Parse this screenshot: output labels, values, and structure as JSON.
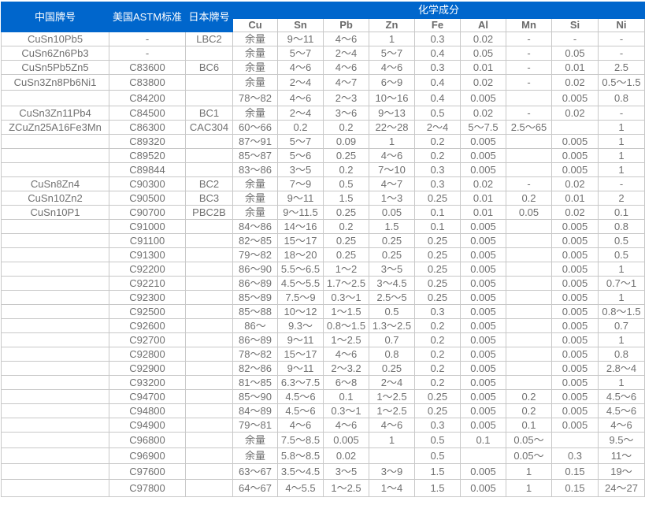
{
  "header": {
    "cn_grade": "中国牌号",
    "astm": "美国ASTM标准",
    "jp_grade": "日本牌号",
    "composition": "化学成分",
    "elements": [
      "Cu",
      "Sn",
      "Pb",
      "Zn",
      "Fe",
      "Al",
      "Mn",
      "Si",
      "Ni"
    ]
  },
  "rows": [
    [
      "CuSn10Pb5",
      "-",
      "LBC2",
      "余量",
      "9～11",
      "4～6",
      "1",
      "0.3",
      "0.02",
      "-",
      "-",
      "-"
    ],
    [
      "CuSn6Zn6Pb3",
      "-",
      "",
      "余量",
      "5～7",
      "2～4",
      "5～7",
      "0.4",
      "0.05",
      "-",
      "0.05",
      "-"
    ],
    [
      "CuSn5Pb5Zn5",
      "C83600",
      "BC6",
      "余量",
      "4～6",
      "4～6",
      "4～6",
      "0.3",
      "0.01",
      "-",
      "0.01",
      "2.5"
    ],
    [
      "CuSn3Zn8Pb6Ni1",
      "C83800",
      "",
      "余量",
      "2～4",
      "4～7",
      "6～9",
      "0.4",
      "0.02",
      "-",
      "0.02",
      "0.5～1.5"
    ],
    [
      "",
      "C84200",
      "",
      "78～82",
      "4～6",
      "2～3",
      "10～16",
      "0.4",
      "0.005",
      "",
      "0.005",
      "0.8"
    ],
    [
      "CuSn3Zn11Pb4",
      "C84500",
      "BC1",
      "余量",
      "2～4",
      "3～6",
      "9～13",
      "0.5",
      "0.02",
      "-",
      "0.02",
      "-"
    ],
    [
      "ZCuZn25A16Fe3Mn",
      "C86300",
      "CAC304",
      "60～66",
      "0.2",
      "0.2",
      "22～28",
      "2～4",
      "5～7.5",
      "2.5～65",
      "",
      "1"
    ],
    [
      "",
      "C89320",
      "",
      "87～91",
      "5～7",
      "0.09",
      "1",
      "0.2",
      "0.005",
      "",
      "0.005",
      "1"
    ],
    [
      "",
      "C89520",
      "",
      "85～87",
      "5～6",
      "0.25",
      "4～6",
      "0.2",
      "0.005",
      "",
      "0.005",
      "1"
    ],
    [
      "",
      "C89844",
      "",
      "83～86",
      "3～5",
      "0.2",
      "7～10",
      "0.3",
      "0.005",
      "",
      "0.005",
      "1"
    ],
    [
      "CuSn8Zn4",
      "C90300",
      "BC2",
      "余量",
      "7～9",
      "0.5",
      "4～7",
      "0.3",
      "0.02",
      "-",
      "0.02",
      "-"
    ],
    [
      "CuSn10Zn2",
      "C90500",
      "BC3",
      "余量",
      "9～11",
      "1.5",
      "1～3",
      "0.25",
      "0.01",
      "0.2",
      "0.01",
      "2"
    ],
    [
      "CuSn10P1",
      "C90700",
      "PBC2B",
      "余量",
      "9～11.5",
      "0.25",
      "0.05",
      "0.1",
      "0.01",
      "0.05",
      "0.02",
      "0.1"
    ],
    [
      "",
      "C91000",
      "",
      "84～86",
      "14～16",
      "0.2",
      "1.5",
      "0.1",
      "0.005",
      "",
      "0.005",
      "0.8"
    ],
    [
      "",
      "C91100",
      "",
      "82～85",
      "15～17",
      "0.25",
      "0.25",
      "0.25",
      "0.005",
      "",
      "0.005",
      "0.5"
    ],
    [
      "",
      "C91300",
      "",
      "79～82",
      "18～20",
      "0.25",
      "0.25",
      "0.25",
      "0.005",
      "",
      "0.005",
      "0.5"
    ],
    [
      "",
      "C92200",
      "",
      "86～90",
      "5.5～6.5",
      "1～2",
      "3～5",
      "0.25",
      "0.005",
      "",
      "0.005",
      "1"
    ],
    [
      "",
      "C92210",
      "",
      "86～89",
      "4.5～5.5",
      "1.7～2.5",
      "3～4.5",
      "0.25",
      "0.005",
      "",
      "0.005",
      "0.7～1"
    ],
    [
      "",
      "C92300",
      "",
      "85～89",
      "7.5～9",
      "0.3～1",
      "2.5～5",
      "0.25",
      "0.005",
      "",
      "0.005",
      "1"
    ],
    [
      "",
      "C92500",
      "",
      "85～88",
      "10～12",
      "1～1.5",
      "0.5",
      "0.3",
      "0.005",
      "",
      "0.005",
      "0.8～1.5"
    ],
    [
      "",
      "C92600",
      "",
      "86～",
      "9.3～",
      "0.8～1.5",
      "1.3～2.5",
      "0.2",
      "0.005",
      "",
      "0.005",
      "0.7"
    ],
    [
      "",
      "C92700",
      "",
      "86～89",
      "9～11",
      "1～2.5",
      "0.7",
      "0.2",
      "0.005",
      "",
      "0.005",
      "1"
    ],
    [
      "",
      "C92800",
      "",
      "78～82",
      "15～17",
      "4～6",
      "0.8",
      "0.2",
      "0.005",
      "",
      "0.005",
      "0.8"
    ],
    [
      "",
      "C92900",
      "",
      "82～86",
      "9～11",
      "2～3.2",
      "0.25",
      "0.2",
      "0.005",
      "",
      "0.005",
      "2.8～4"
    ],
    [
      "",
      "C93200",
      "",
      "81～85",
      "6.3～7.5",
      "6～8",
      "2～4",
      "0.2",
      "0.005",
      "",
      "0.005",
      "1"
    ],
    [
      "",
      "C94700",
      "",
      "85～90",
      "4.5～6",
      "0.1",
      "1～2.5",
      "0.25",
      "0.005",
      "0.2",
      "0.005",
      "4.5～6"
    ],
    [
      "",
      "C94800",
      "",
      "84～89",
      "4.5～6",
      "0.3～1",
      "1～2.5",
      "0.25",
      "0.005",
      "0.2",
      "0.005",
      "4.5～6"
    ],
    [
      "",
      "C94900",
      "",
      "79～81",
      "4～6",
      "4～6",
      "4～6",
      "0.3",
      "0.005",
      "0.1",
      "0.005",
      "4～6"
    ],
    [
      "",
      "C96800",
      "",
      "余量",
      "7.5～8.5",
      "0.005",
      "1",
      "0.5",
      "0.1",
      "0.05～",
      "",
      "9.5～"
    ],
    [
      "",
      "C96900",
      "",
      "余量",
      "5.8～8.5",
      "0.02",
      "",
      "0.5",
      "",
      "0.05～",
      "0.3",
      "11～"
    ],
    [
      "",
      "C97600",
      "",
      "63～67",
      "3.5～4.5",
      "3～5",
      "3～9",
      "1.5",
      "0.005",
      "1",
      "0.15",
      "19～"
    ],
    [
      "",
      "C97800",
      "",
      "64～67",
      "4～5.5",
      "1～2.5",
      "1～4",
      "1.5",
      "0.005",
      "1",
      "0.15",
      "24～27"
    ]
  ]
}
